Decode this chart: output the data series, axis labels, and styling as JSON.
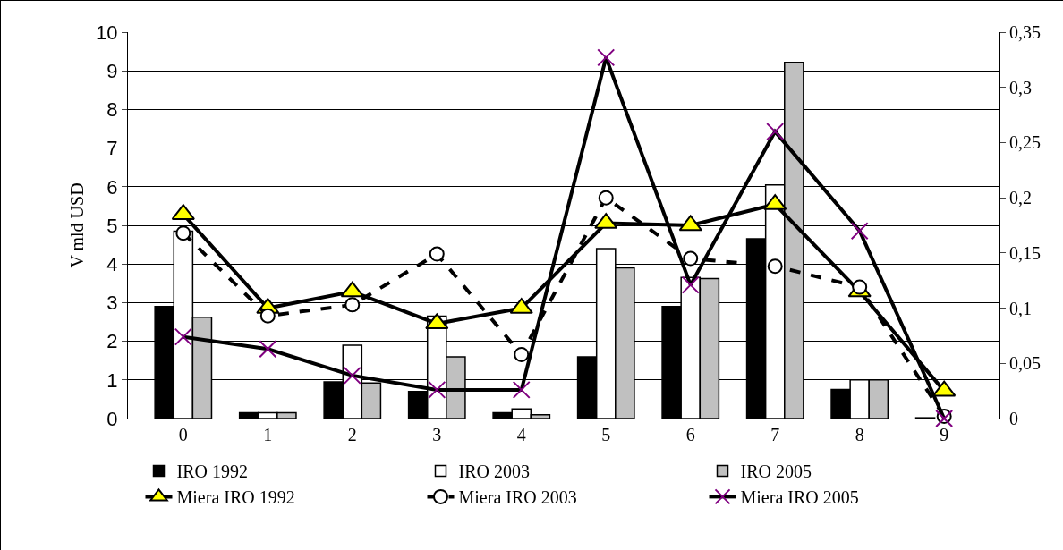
{
  "chart_data": {
    "type": "bar",
    "ylabel": "V mld USD",
    "categories": [
      "0",
      "1",
      "2",
      "3",
      "4",
      "5",
      "6",
      "7",
      "8",
      "9"
    ],
    "ylim": [
      0,
      10
    ],
    "yticks": [
      0,
      1,
      2,
      3,
      4,
      5,
      6,
      7,
      8,
      9,
      10
    ],
    "y2lim": [
      0,
      0.35
    ],
    "y2ticks": [
      {
        "value": 0,
        "label": "0"
      },
      {
        "value": 0.05,
        "label": "0,05"
      },
      {
        "value": 0.1,
        "label": "0,1"
      },
      {
        "value": 0.15,
        "label": "0,15"
      },
      {
        "value": 0.2,
        "label": "0,2"
      },
      {
        "value": 0.25,
        "label": "0,25"
      },
      {
        "value": 0.3,
        "label": "0,3"
      },
      {
        "value": 0.35,
        "label": "0,35"
      }
    ],
    "grid": "y",
    "legend": "bottom",
    "series": [
      {
        "name": "IRO 1992",
        "color": "#000000",
        "values": [
          2.9,
          0.15,
          0.95,
          0.7,
          0.15,
          1.6,
          2.9,
          4.65,
          0.75,
          0.02
        ]
      },
      {
        "name": "IRO 2003",
        "color": "#ffffff",
        "values": [
          4.85,
          0.15,
          1.9,
          2.65,
          0.25,
          4.4,
          3.65,
          6.05,
          1.0,
          null
        ]
      },
      {
        "name": "IRO 2005",
        "color": "#c0c0c0",
        "values": [
          2.62,
          0.15,
          0.92,
          1.6,
          0.1,
          3.9,
          3.62,
          9.22,
          1.0,
          null
        ]
      },
      {
        "name": "Miera IRO 1992",
        "type": "line",
        "axis": "y2",
        "color": "#ffff00",
        "marker": "triangle",
        "line_style": "solid",
        "values": [
          0.185,
          0.1,
          0.115,
          0.086,
          0.1,
          0.177,
          0.175,
          0.194,
          0.115,
          0.025
        ]
      },
      {
        "name": "Miera IRO 2003",
        "type": "line",
        "axis": "y2",
        "color": "#ffffff",
        "marker": "circle",
        "line_style": "dashed",
        "values": [
          0.168,
          0.093,
          0.103,
          0.149,
          0.058,
          0.2,
          0.145,
          0.138,
          0.119,
          0.002
        ]
      },
      {
        "name": "Miera IRO 2005",
        "type": "line",
        "axis": "y2",
        "color": "#800080",
        "marker": "cross",
        "line_style": "solid",
        "values": [
          0.074,
          0.063,
          0.039,
          0.026,
          0.026,
          0.327,
          0.121,
          0.26,
          0.17,
          0
        ]
      }
    ]
  }
}
